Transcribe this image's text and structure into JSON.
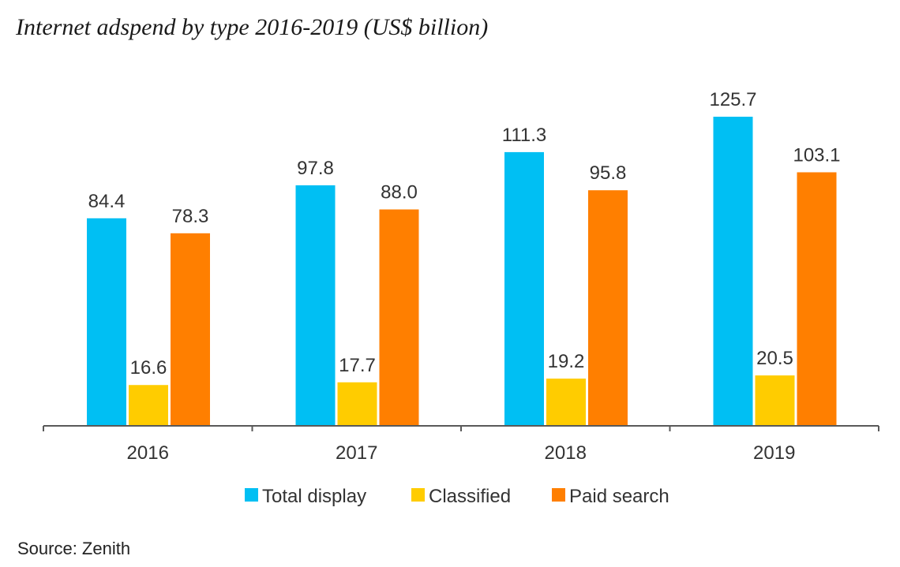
{
  "chart_data": {
    "type": "bar",
    "title": "Internet adspend by type 2016-2019 (US$ billion)",
    "xlabel": "",
    "ylabel": "",
    "categories": [
      "2016",
      "2017",
      "2018",
      "2019"
    ],
    "series": [
      {
        "name": "Total display",
        "values": [
          84.4,
          97.8,
          111.3,
          125.7
        ],
        "labels": [
          "84.4",
          "97.8",
          "111.3",
          "125.7"
        ],
        "color": "#00BFF3"
      },
      {
        "name": "Classified",
        "values": [
          16.6,
          17.7,
          19.2,
          20.5
        ],
        "labels": [
          "16.6",
          "17.7",
          "19.2",
          "20.5"
        ],
        "color": "#FFCC00"
      },
      {
        "name": "Paid search",
        "values": [
          78.3,
          88.0,
          95.8,
          103.1
        ],
        "labels": [
          "78.3",
          "88.0",
          "95.8",
          "103.1"
        ],
        "color": "#FF7F00"
      }
    ],
    "ylim": [
      0,
      140
    ],
    "grid": false,
    "legend": "bottom"
  },
  "source": "Source: Zenith"
}
